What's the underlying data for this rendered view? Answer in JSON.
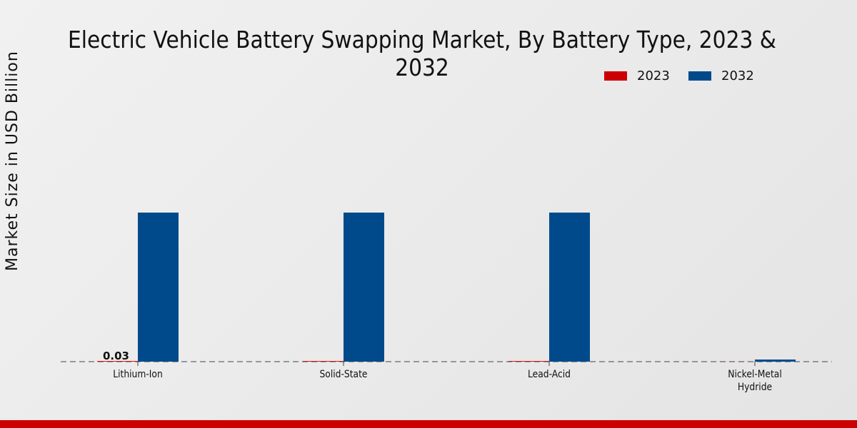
{
  "chart_data": {
    "type": "bar",
    "title": "Electric Vehicle Battery Swapping Market, By Battery Type, 2023 & 2032",
    "ylabel": "Market Size in USD Billion",
    "xlabel": "",
    "categories": [
      "Lithium-Ion",
      "Solid-State",
      "Lead-Acid",
      "Nickel-Metal Hydride"
    ],
    "series": [
      {
        "name": "2023",
        "color": "#cc0000",
        "values": [
          0.03,
          0.03,
          0.03,
          0.003
        ]
      },
      {
        "name": "2032",
        "color": "#004a8b",
        "values": [
          7.0,
          7.0,
          7.0,
          0.1
        ]
      }
    ],
    "data_labels": [
      {
        "series": "2023",
        "category": "Lithium-Ion",
        "text": "0.03"
      }
    ],
    "ylim": [
      0,
      7.0
    ],
    "legend": "top-right",
    "grid": false
  }
}
